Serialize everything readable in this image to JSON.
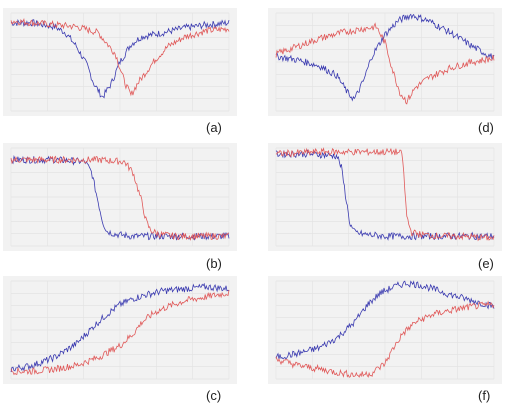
{
  "chart_data": [
    {
      "panel": "(a)",
      "type": "line",
      "xlim": [
        0,
        100
      ],
      "ylim": [
        0,
        1
      ],
      "grid": true,
      "series": [
        {
          "color": "#3b3bb0",
          "x": [
            0,
            10,
            20,
            25,
            30,
            35,
            38,
            42,
            46,
            50,
            55,
            60,
            70,
            80,
            90,
            100
          ],
          "y": [
            0.9,
            0.9,
            0.86,
            0.8,
            0.66,
            0.46,
            0.28,
            0.14,
            0.28,
            0.5,
            0.68,
            0.76,
            0.8,
            0.85,
            0.88,
            0.9
          ]
        },
        {
          "color": "#e05a5a",
          "x": [
            0,
            10,
            20,
            30,
            40,
            48,
            52,
            55,
            58,
            62,
            66,
            72,
            80,
            90,
            100
          ],
          "y": [
            0.92,
            0.9,
            0.88,
            0.86,
            0.8,
            0.58,
            0.3,
            0.16,
            0.28,
            0.4,
            0.52,
            0.66,
            0.76,
            0.82,
            0.84
          ]
        }
      ]
    },
    {
      "panel": "(b)",
      "type": "line",
      "xlim": [
        0,
        100
      ],
      "ylim": [
        0,
        1
      ],
      "grid": true,
      "series": [
        {
          "color": "#3b3bb0",
          "x": [
            0,
            20,
            34,
            37,
            40,
            42,
            44,
            48,
            55,
            70,
            85,
            100
          ],
          "y": [
            0.88,
            0.88,
            0.86,
            0.75,
            0.45,
            0.25,
            0.15,
            0.12,
            0.1,
            0.1,
            0.1,
            0.1
          ]
        },
        {
          "color": "#e05a5a",
          "x": [
            0,
            20,
            40,
            52,
            56,
            60,
            62,
            64,
            68,
            75,
            85,
            100
          ],
          "y": [
            0.88,
            0.88,
            0.88,
            0.86,
            0.75,
            0.45,
            0.25,
            0.16,
            0.12,
            0.1,
            0.1,
            0.1
          ]
        }
      ]
    },
    {
      "panel": "(c)",
      "type": "line",
      "xlim": [
        0,
        100
      ],
      "ylim": [
        0,
        1
      ],
      "grid": true,
      "series": [
        {
          "color": "#3b3bb0",
          "x": [
            0,
            10,
            20,
            30,
            38,
            44,
            50,
            56,
            62,
            70,
            80,
            90,
            100
          ],
          "y": [
            0.1,
            0.14,
            0.22,
            0.36,
            0.54,
            0.66,
            0.76,
            0.82,
            0.86,
            0.9,
            0.92,
            0.94,
            0.92
          ]
        },
        {
          "color": "#e05a5a",
          "x": [
            0,
            10,
            20,
            30,
            40,
            50,
            56,
            60,
            66,
            72,
            80,
            90,
            100
          ],
          "y": [
            0.08,
            0.08,
            0.1,
            0.14,
            0.22,
            0.34,
            0.46,
            0.58,
            0.68,
            0.74,
            0.8,
            0.84,
            0.88
          ]
        }
      ]
    },
    {
      "panel": "(d)",
      "type": "line",
      "xlim": [
        0,
        100
      ],
      "ylim": [
        0,
        1
      ],
      "grid": true,
      "series": [
        {
          "color": "#3b3bb0",
          "x": [
            0,
            10,
            20,
            28,
            33,
            36,
            40,
            44,
            50,
            56,
            62,
            70,
            80,
            90,
            100
          ],
          "y": [
            0.56,
            0.52,
            0.46,
            0.36,
            0.18,
            0.12,
            0.3,
            0.56,
            0.78,
            0.92,
            0.98,
            0.92,
            0.8,
            0.66,
            0.54
          ]
        },
        {
          "color": "#e05a5a",
          "x": [
            0,
            10,
            20,
            30,
            40,
            46,
            50,
            54,
            57,
            60,
            64,
            70,
            80,
            90,
            100
          ],
          "y": [
            0.58,
            0.66,
            0.74,
            0.8,
            0.84,
            0.86,
            0.7,
            0.38,
            0.18,
            0.1,
            0.24,
            0.34,
            0.44,
            0.5,
            0.54
          ]
        }
      ]
    },
    {
      "panel": "(e)",
      "type": "line",
      "xlim": [
        0,
        100
      ],
      "ylim": [
        0,
        1
      ],
      "grid": true,
      "series": [
        {
          "color": "#3b3bb0",
          "x": [
            0,
            15,
            28,
            30,
            32,
            34,
            36,
            40,
            50,
            70,
            85,
            100
          ],
          "y": [
            0.94,
            0.94,
            0.92,
            0.8,
            0.5,
            0.22,
            0.14,
            0.12,
            0.1,
            0.1,
            0.1,
            0.1
          ]
        },
        {
          "color": "#e05a5a",
          "x": [
            0,
            20,
            40,
            55,
            58,
            59,
            60,
            62,
            66,
            75,
            85,
            100
          ],
          "y": [
            0.94,
            0.96,
            0.96,
            0.96,
            0.94,
            0.6,
            0.3,
            0.14,
            0.12,
            0.1,
            0.1,
            0.08
          ]
        }
      ]
    },
    {
      "panel": "(f)",
      "type": "line",
      "xlim": [
        0,
        100
      ],
      "ylim": [
        0,
        1
      ],
      "grid": true,
      "series": [
        {
          "color": "#3b3bb0",
          "x": [
            0,
            10,
            20,
            28,
            36,
            42,
            48,
            54,
            60,
            66,
            72,
            80,
            90,
            100
          ],
          "y": [
            0.22,
            0.26,
            0.32,
            0.42,
            0.58,
            0.76,
            0.88,
            0.94,
            0.98,
            0.96,
            0.92,
            0.86,
            0.8,
            0.74
          ]
        },
        {
          "color": "#e05a5a",
          "x": [
            0,
            10,
            20,
            30,
            38,
            44,
            50,
            54,
            58,
            64,
            72,
            80,
            90,
            100
          ],
          "y": [
            0.2,
            0.14,
            0.1,
            0.06,
            0.04,
            0.06,
            0.16,
            0.32,
            0.46,
            0.58,
            0.66,
            0.7,
            0.74,
            0.76
          ]
        }
      ]
    }
  ]
}
